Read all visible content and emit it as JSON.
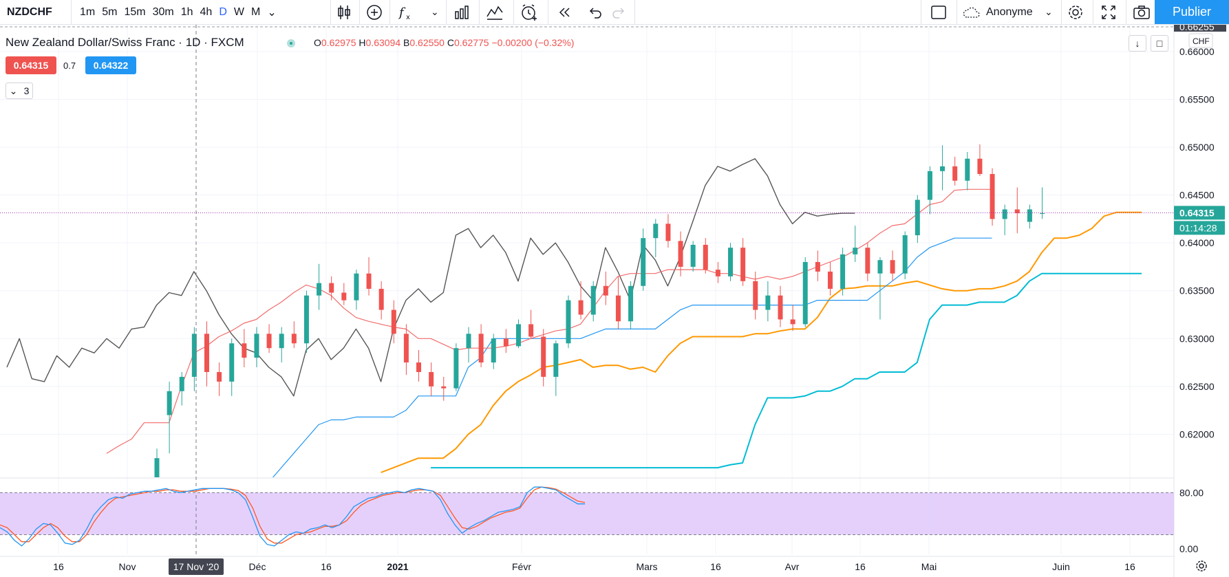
{
  "toolbar": {
    "symbol": "NZDCHF",
    "timeframes": [
      "1m",
      "5m",
      "15m",
      "30m",
      "1h",
      "4h",
      "D",
      "W",
      "M"
    ],
    "active_timeframe": "D",
    "account_label": "Anonyme",
    "publish_label": "Publier",
    "icons": [
      "candles-icon",
      "add-compare-icon",
      "indicators-icon",
      "chart-type-icon",
      "templates-icon",
      "alert-icon",
      "replay-icon",
      "undo-icon",
      "redo-icon",
      "layout-icon",
      "settings-icon",
      "fullscreen-icon",
      "camera-icon"
    ]
  },
  "legend": {
    "title": "New Zealand Dollar/Swiss Franc · 1D · FXCM",
    "o_label": "O",
    "o_value": "0.62975",
    "h_label": "H",
    "h_value": "0.63094",
    "b_label": "B",
    "b_value": "0.62550",
    "c_label": "C",
    "c_value": "0.62775",
    "change": "−0.00200 (−0.32%)",
    "sell_price": "0.64315",
    "spread": "0.7",
    "buy_price": "0.64322",
    "collapse_count": "3"
  },
  "price_axis": {
    "top_clipped_label": "0.66255",
    "currency": "CHF",
    "labels": [
      "0.66000",
      "0.65500",
      "0.65000",
      "0.64500",
      "0.64000",
      "0.63500",
      "0.63000",
      "0.62500",
      "0.62000"
    ],
    "last_price": "0.64315",
    "countdown": "01:14:28"
  },
  "stoch_axis": {
    "labels": [
      "80.00",
      "0.00"
    ]
  },
  "time_axis": {
    "labels": [
      "16",
      "Nov",
      "17 Nov '20",
      "Déc",
      "16",
      "2021",
      "Févr",
      "Mars",
      "16",
      "Avr",
      "16",
      "Mai",
      "Juin",
      "16"
    ],
    "highlight": "17 Nov '20"
  },
  "colors": {
    "up": "#26a69a",
    "down": "#ef5350",
    "tenkan": "#f26b6b",
    "kijun": "#2196f3",
    "lagging": "#555555",
    "span_a": "#ff9800",
    "span_b": "#00bcd4",
    "stoch_k": "#2196f3",
    "stoch_d": "#ff5722",
    "stoch_band": "#e1c8fb",
    "publish": "#2196f3",
    "last_price_line": "#9c27b0"
  },
  "chart_data": [
    {
      "type": "candlestick",
      "title": "New Zealand Dollar/Swiss Franc · 1D · FXCM",
      "ylim": [
        0.6155,
        0.6628
      ],
      "y_ticks": [
        0.62,
        0.625,
        0.63,
        0.635,
        0.64,
        0.645,
        0.65,
        0.655,
        0.66
      ],
      "candles": [
        {
          "o": 0.604,
          "h": 0.6185,
          "l": 0.603,
          "c": 0.6175
        },
        {
          "o": 0.622,
          "h": 0.6255,
          "l": 0.618,
          "c": 0.6245
        },
        {
          "o": 0.6245,
          "h": 0.6265,
          "l": 0.623,
          "c": 0.626
        },
        {
          "o": 0.626,
          "h": 0.6312,
          "l": 0.6245,
          "c": 0.6305
        },
        {
          "o": 0.6305,
          "h": 0.6318,
          "l": 0.625,
          "c": 0.6265
        },
        {
          "o": 0.6265,
          "h": 0.6275,
          "l": 0.624,
          "c": 0.6255
        },
        {
          "o": 0.6255,
          "h": 0.63,
          "l": 0.624,
          "c": 0.6295
        },
        {
          "o": 0.6295,
          "h": 0.631,
          "l": 0.627,
          "c": 0.628
        },
        {
          "o": 0.628,
          "h": 0.6312,
          "l": 0.627,
          "c": 0.6305
        },
        {
          "o": 0.6305,
          "h": 0.6315,
          "l": 0.6285,
          "c": 0.629
        },
        {
          "o": 0.629,
          "h": 0.6312,
          "l": 0.6275,
          "c": 0.6305
        },
        {
          "o": 0.6305,
          "h": 0.6318,
          "l": 0.629,
          "c": 0.6295
        },
        {
          "o": 0.6295,
          "h": 0.635,
          "l": 0.6285,
          "c": 0.6345
        },
        {
          "o": 0.6345,
          "h": 0.6378,
          "l": 0.633,
          "c": 0.6358
        },
        {
          "o": 0.6358,
          "h": 0.6365,
          "l": 0.634,
          "c": 0.6348
        },
        {
          "o": 0.6348,
          "h": 0.6358,
          "l": 0.6335,
          "c": 0.634
        },
        {
          "o": 0.634,
          "h": 0.6372,
          "l": 0.633,
          "c": 0.6368
        },
        {
          "o": 0.6368,
          "h": 0.6385,
          "l": 0.6345,
          "c": 0.6352
        },
        {
          "o": 0.6352,
          "h": 0.636,
          "l": 0.632,
          "c": 0.633
        },
        {
          "o": 0.633,
          "h": 0.634,
          "l": 0.6295,
          "c": 0.6305
        },
        {
          "o": 0.6305,
          "h": 0.6315,
          "l": 0.6262,
          "c": 0.6275
        },
        {
          "o": 0.6275,
          "h": 0.6288,
          "l": 0.6255,
          "c": 0.6265
        },
        {
          "o": 0.6265,
          "h": 0.6275,
          "l": 0.624,
          "c": 0.625
        },
        {
          "o": 0.625,
          "h": 0.626,
          "l": 0.6235,
          "c": 0.6248
        },
        {
          "o": 0.6248,
          "h": 0.6295,
          "l": 0.6245,
          "c": 0.629
        },
        {
          "o": 0.629,
          "h": 0.6312,
          "l": 0.6275,
          "c": 0.6305
        },
        {
          "o": 0.6305,
          "h": 0.6315,
          "l": 0.627,
          "c": 0.6275
        },
        {
          "o": 0.6275,
          "h": 0.6305,
          "l": 0.6268,
          "c": 0.63
        },
        {
          "o": 0.63,
          "h": 0.631,
          "l": 0.6285,
          "c": 0.6292
        },
        {
          "o": 0.6292,
          "h": 0.632,
          "l": 0.629,
          "c": 0.6315
        },
        {
          "o": 0.6315,
          "h": 0.633,
          "l": 0.63,
          "c": 0.6302
        },
        {
          "o": 0.6302,
          "h": 0.631,
          "l": 0.625,
          "c": 0.626
        },
        {
          "o": 0.626,
          "h": 0.6298,
          "l": 0.624,
          "c": 0.6295
        },
        {
          "o": 0.6295,
          "h": 0.6345,
          "l": 0.629,
          "c": 0.634
        },
        {
          "o": 0.634,
          "h": 0.636,
          "l": 0.632,
          "c": 0.6325
        },
        {
          "o": 0.6325,
          "h": 0.636,
          "l": 0.6318,
          "c": 0.6355
        },
        {
          "o": 0.6355,
          "h": 0.637,
          "l": 0.6335,
          "c": 0.6345
        },
        {
          "o": 0.6345,
          "h": 0.6365,
          "l": 0.631,
          "c": 0.6318
        },
        {
          "o": 0.6318,
          "h": 0.636,
          "l": 0.631,
          "c": 0.6355
        },
        {
          "o": 0.6355,
          "h": 0.6415,
          "l": 0.635,
          "c": 0.6405
        },
        {
          "o": 0.6405,
          "h": 0.6425,
          "l": 0.6385,
          "c": 0.642
        },
        {
          "o": 0.642,
          "h": 0.643,
          "l": 0.6395,
          "c": 0.6402
        },
        {
          "o": 0.6402,
          "h": 0.6412,
          "l": 0.6365,
          "c": 0.6375
        },
        {
          "o": 0.6375,
          "h": 0.6402,
          "l": 0.637,
          "c": 0.6398
        },
        {
          "o": 0.6398,
          "h": 0.6405,
          "l": 0.6368,
          "c": 0.6372
        },
        {
          "o": 0.6372,
          "h": 0.638,
          "l": 0.6358,
          "c": 0.6365
        },
        {
          "o": 0.6365,
          "h": 0.64,
          "l": 0.636,
          "c": 0.6395
        },
        {
          "o": 0.6395,
          "h": 0.6405,
          "l": 0.6355,
          "c": 0.636
        },
        {
          "o": 0.636,
          "h": 0.637,
          "l": 0.632,
          "c": 0.633
        },
        {
          "o": 0.633,
          "h": 0.636,
          "l": 0.6318,
          "c": 0.6345
        },
        {
          "o": 0.6345,
          "h": 0.6355,
          "l": 0.6312,
          "c": 0.632
        },
        {
          "o": 0.632,
          "h": 0.6335,
          "l": 0.6308,
          "c": 0.6315
        },
        {
          "o": 0.6315,
          "h": 0.6385,
          "l": 0.6312,
          "c": 0.638
        },
        {
          "o": 0.638,
          "h": 0.6392,
          "l": 0.636,
          "c": 0.637
        },
        {
          "o": 0.637,
          "h": 0.638,
          "l": 0.6345,
          "c": 0.6352
        },
        {
          "o": 0.6352,
          "h": 0.6395,
          "l": 0.6345,
          "c": 0.6388
        },
        {
          "o": 0.6388,
          "h": 0.6418,
          "l": 0.638,
          "c": 0.6395
        },
        {
          "o": 0.6395,
          "h": 0.64,
          "l": 0.636,
          "c": 0.6368
        },
        {
          "o": 0.6368,
          "h": 0.6385,
          "l": 0.632,
          "c": 0.6382
        },
        {
          "o": 0.6382,
          "h": 0.6392,
          "l": 0.636,
          "c": 0.6368
        },
        {
          "o": 0.6368,
          "h": 0.6412,
          "l": 0.6362,
          "c": 0.6408
        },
        {
          "o": 0.6408,
          "h": 0.645,
          "l": 0.64,
          "c": 0.6445
        },
        {
          "o": 0.6445,
          "h": 0.648,
          "l": 0.643,
          "c": 0.6475
        },
        {
          "o": 0.6475,
          "h": 0.6502,
          "l": 0.6455,
          "c": 0.648
        },
        {
          "o": 0.648,
          "h": 0.649,
          "l": 0.646,
          "c": 0.6465
        },
        {
          "o": 0.6465,
          "h": 0.6495,
          "l": 0.6455,
          "c": 0.6488
        },
        {
          "o": 0.6488,
          "h": 0.6503,
          "l": 0.647,
          "c": 0.6472
        },
        {
          "o": 0.6472,
          "h": 0.6478,
          "l": 0.6418,
          "c": 0.6425
        },
        {
          "o": 0.6425,
          "h": 0.644,
          "l": 0.6408,
          "c": 0.6435
        },
        {
          "o": 0.6435,
          "h": 0.6458,
          "l": 0.641,
          "c": 0.6431
        },
        {
          "o": 0.6422,
          "h": 0.644,
          "l": 0.6415,
          "c": 0.6435
        },
        {
          "o": 0.6431,
          "h": 0.6458,
          "l": 0.6425,
          "c": 0.6431
        }
      ],
      "tenkan": [
        0.618,
        0.6188,
        0.6195,
        0.6212,
        0.6212,
        0.6212,
        0.625,
        0.6285,
        0.6292,
        0.6302,
        0.6308,
        0.6316,
        0.632,
        0.633,
        0.6338,
        0.6348,
        0.6356,
        0.6352,
        0.6345,
        0.6332,
        0.6322,
        0.6318,
        0.6315,
        0.6312,
        0.631,
        0.63,
        0.63,
        0.6294,
        0.6288,
        0.629,
        0.629,
        0.629,
        0.6292,
        0.6295,
        0.63,
        0.6304,
        0.6308,
        0.631,
        0.6315,
        0.6332,
        0.635,
        0.6365,
        0.6368,
        0.6368,
        0.6368,
        0.6372,
        0.6372,
        0.6372,
        0.6372,
        0.6368,
        0.6368,
        0.6365,
        0.6362,
        0.6365,
        0.6362,
        0.6365,
        0.637,
        0.6375,
        0.638,
        0.6385,
        0.6392,
        0.64,
        0.641,
        0.6418,
        0.642,
        0.643,
        0.644,
        0.6443,
        0.6455,
        0.6456,
        0.6456,
        0.6456
      ],
      "kijun": [
        0.614,
        0.615,
        0.6165,
        0.618,
        0.6195,
        0.621,
        0.6215,
        0.6215,
        0.6218,
        0.6218,
        0.6218,
        0.6218,
        0.6225,
        0.624,
        0.624,
        0.624,
        0.624,
        0.627,
        0.628,
        0.63,
        0.63,
        0.63,
        0.63,
        0.63,
        0.63,
        0.63,
        0.63,
        0.6305,
        0.631,
        0.631,
        0.631,
        0.631,
        0.631,
        0.632,
        0.633,
        0.6335,
        0.6335,
        0.6335,
        0.6335,
        0.6335,
        0.6335,
        0.6335,
        0.6335,
        0.6335,
        0.6335,
        0.634,
        0.634,
        0.634,
        0.634,
        0.634,
        0.635,
        0.636,
        0.637,
        0.6385,
        0.6395,
        0.64,
        0.6405,
        0.6405,
        0.6405,
        0.6405
      ],
      "kijun_start": 12,
      "lagging": [
        0.627,
        0.63,
        0.6258,
        0.6255,
        0.6282,
        0.627,
        0.629,
        0.6285,
        0.63,
        0.629,
        0.631,
        0.6312,
        0.6335,
        0.6348,
        0.6345,
        0.637,
        0.635,
        0.6325,
        0.6305,
        0.629,
        0.6285,
        0.627,
        0.626,
        0.624,
        0.6288,
        0.63,
        0.6278,
        0.629,
        0.631,
        0.629,
        0.6255,
        0.631,
        0.634,
        0.6352,
        0.6338,
        0.6348,
        0.6408,
        0.6415,
        0.6395,
        0.6408,
        0.639,
        0.636,
        0.6405,
        0.6388,
        0.64,
        0.638,
        0.6355,
        0.634,
        0.6395,
        0.637,
        0.634,
        0.6398,
        0.6382,
        0.6355,
        0.6385,
        0.6422,
        0.646,
        0.648,
        0.6475,
        0.6482,
        0.6488,
        0.647,
        0.644,
        0.642,
        0.6432,
        0.6428,
        0.643,
        0.6431,
        0.6431
      ],
      "span_a": [
        0.616,
        0.6165,
        0.617,
        0.6175,
        0.6175,
        0.6175,
        0.6185,
        0.62,
        0.621,
        0.623,
        0.6245,
        0.6255,
        0.6262,
        0.627,
        0.6272,
        0.6275,
        0.6278,
        0.627,
        0.6272,
        0.6272,
        0.6268,
        0.627,
        0.6265,
        0.6282,
        0.6295,
        0.6302,
        0.6302,
        0.6302,
        0.6302,
        0.6302,
        0.6305,
        0.6305,
        0.6308,
        0.631,
        0.631,
        0.6322,
        0.6342,
        0.6352,
        0.6353,
        0.6355,
        0.6355,
        0.6355,
        0.6358,
        0.636,
        0.6356,
        0.6352,
        0.635,
        0.635,
        0.6352,
        0.6352,
        0.6355,
        0.636,
        0.637,
        0.639,
        0.6405,
        0.6405,
        0.6408,
        0.6415,
        0.6428,
        0.6432,
        0.6432,
        0.6432
      ],
      "span_a_start": 22,
      "span_b": [
        0.6165,
        0.6165,
        0.6165,
        0.6165,
        0.6165,
        0.6165,
        0.6165,
        0.6165,
        0.6165,
        0.6165,
        0.6165,
        0.6165,
        0.6165,
        0.6165,
        0.6165,
        0.6165,
        0.6165,
        0.6165,
        0.6165,
        0.6165,
        0.6165,
        0.6165,
        0.6165,
        0.6165,
        0.6168,
        0.617,
        0.621,
        0.6238,
        0.6238,
        0.6238,
        0.624,
        0.6245,
        0.6245,
        0.625,
        0.6258,
        0.6258,
        0.6265,
        0.6265,
        0.6265,
        0.6275,
        0.632,
        0.6335,
        0.6335,
        0.6335,
        0.6338,
        0.6338,
        0.6338,
        0.6345,
        0.636,
        0.6368,
        0.6368,
        0.6368,
        0.6368,
        0.6368,
        0.6368,
        0.6368,
        0.6368,
        0.6368
      ],
      "span_b_start": 26
    },
    {
      "type": "line",
      "title": "",
      "ylim": [
        -8,
        100
      ],
      "levels": [
        80,
        20
      ],
      "y_ticks": [
        80,
        0
      ],
      "series": [
        {
          "values": [
            30,
            24,
            12,
            4,
            14,
            28,
            36,
            34,
            22,
            8,
            6,
            12,
            28,
            48,
            60,
            70,
            74,
            72,
            78,
            80,
            82,
            82,
            84,
            86,
            82,
            80,
            82,
            84,
            86,
            86,
            86,
            86,
            84,
            80,
            70,
            45,
            18,
            6,
            4,
            12,
            20,
            24,
            22,
            28,
            30,
            34,
            30,
            34,
            46,
            60,
            66,
            72,
            74,
            78,
            80,
            82,
            80,
            84,
            86,
            84,
            82,
            70,
            50,
            34,
            22,
            30,
            36,
            40,
            46,
            52,
            54,
            56,
            60,
            80,
            88,
            88,
            86,
            84,
            76,
            70,
            64,
            64
          ]
        },
        {
          "values": [
            34,
            30,
            20,
            10,
            10,
            20,
            30,
            36,
            30,
            18,
            10,
            10,
            20,
            38,
            52,
            64,
            72,
            74,
            76,
            78,
            80,
            82,
            82,
            84,
            84,
            82,
            82,
            82,
            84,
            86,
            86,
            86,
            85,
            83,
            76,
            58,
            32,
            14,
            8,
            8,
            14,
            20,
            22,
            24,
            28,
            32,
            32,
            34,
            40,
            52,
            62,
            68,
            72,
            76,
            78,
            80,
            80,
            82,
            84,
            84,
            82,
            76,
            60,
            44,
            30,
            28,
            32,
            38,
            44,
            48,
            52,
            54,
            58,
            72,
            84,
            88,
            87,
            85,
            80,
            74,
            68,
            66
          ]
        }
      ]
    }
  ]
}
